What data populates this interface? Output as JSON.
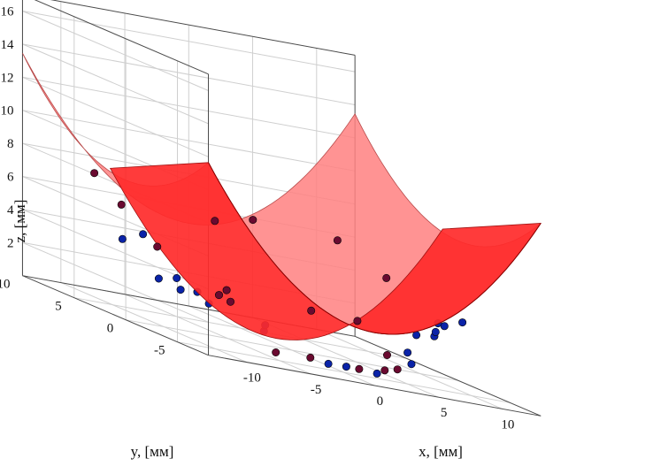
{
  "chart_data": {
    "type": "scatter",
    "subtype": "3d-surface-with-points",
    "title": "",
    "xlabel": "x, [мм]",
    "ylabel": "y, [мм]",
    "zlabel": "z, [мм]",
    "x_ticks": [
      "-10",
      "-5",
      "0",
      "5",
      "10"
    ],
    "y_ticks": [
      "-5",
      "0",
      "5",
      "10"
    ],
    "z_ticks": [
      "2",
      "4",
      "6",
      "8",
      "10",
      "12",
      "14",
      "16"
    ],
    "xlim": [
      -13,
      13
    ],
    "ylim": [
      -8,
      10
    ],
    "zlim": [
      0,
      17
    ],
    "grid": true,
    "surface": {
      "equation": "z = (x^2 + y^2) / 20",
      "x_range": [
        -13,
        13
      ],
      "y_range": [
        -8,
        10
      ],
      "color": "#ff2a2a",
      "back_color": "#ff8080"
    },
    "colors": {
      "point_below": "#0a23a8",
      "point_above": "#6a0a30"
    },
    "points": [
      {
        "x": -7.2,
        "y": 7.5,
        "z": 3.7,
        "side": "below"
      },
      {
        "x": -6.0,
        "y": 7.0,
        "z": 4.3,
        "side": "below"
      },
      {
        "x": -8.0,
        "y": 3.0,
        "z": 2.4,
        "side": "below"
      },
      {
        "x": -7.0,
        "y": 2.5,
        "z": 2.7,
        "side": "below"
      },
      {
        "x": -7.5,
        "y": 1.5,
        "z": 2.2,
        "side": "below"
      },
      {
        "x": -7.0,
        "y": 0.5,
        "z": 2.4,
        "side": "below"
      },
      {
        "x": -6.5,
        "y": 0.0,
        "z": 1.9,
        "side": "below"
      },
      {
        "x": -8.5,
        "y": 6.0,
        "z": 6.0,
        "side": "above"
      },
      {
        "x": -9.0,
        "y": 8.0,
        "z": 7.3,
        "side": "above"
      },
      {
        "x": -6.5,
        "y": 5.0,
        "z": 4.0,
        "side": "above"
      },
      {
        "x": -4.5,
        "y": 1.5,
        "z": 2.3,
        "side": "above"
      },
      {
        "x": -4.0,
        "y": 1.0,
        "z": 2.1,
        "side": "above"
      },
      {
        "x": -3.0,
        "y": -1.0,
        "z": 1.0,
        "side": "below"
      },
      {
        "x": -2.5,
        "y": -0.5,
        "z": 1.3,
        "side": "below"
      },
      {
        "x": -4.5,
        "y": -4.0,
        "z": 0.3,
        "side": "above"
      },
      {
        "x": -3.0,
        "y": -5.5,
        "z": 0.6,
        "side": "above"
      },
      {
        "x": -2.0,
        "y": -6.0,
        "z": 0.5,
        "side": "below"
      },
      {
        "x": -1.0,
        "y": -6.5,
        "z": 0.6,
        "side": "below"
      },
      {
        "x": 0.0,
        "y": -6.5,
        "z": 0.6,
        "side": "above"
      },
      {
        "x": 1.0,
        "y": -7.0,
        "z": 0.6,
        "side": "below"
      },
      {
        "x": 2.0,
        "y": -6.5,
        "z": 0.8,
        "side": "above"
      },
      {
        "x": 3.0,
        "y": -6.5,
        "z": 1.0,
        "side": "above"
      },
      {
        "x": 3.0,
        "y": -5.5,
        "z": 1.6,
        "side": "above"
      },
      {
        "x": 4.5,
        "y": -6.0,
        "z": 1.4,
        "side": "below"
      },
      {
        "x": 5.0,
        "y": -5.0,
        "z": 1.9,
        "side": "below"
      },
      {
        "x": 6.5,
        "y": -4.0,
        "z": 2.9,
        "side": "below"
      },
      {
        "x": 7.5,
        "y": -4.5,
        "z": 3.1,
        "side": "below"
      },
      {
        "x": 8.0,
        "y": -4.0,
        "z": 3.3,
        "side": "below"
      },
      {
        "x": 9.0,
        "y": -3.0,
        "z": 3.7,
        "side": "below"
      },
      {
        "x": 9.5,
        "y": -3.0,
        "z": 3.6,
        "side": "below"
      },
      {
        "x": 10.5,
        "y": -3.5,
        "z": 4.1,
        "side": "below"
      },
      {
        "x": 3.5,
        "y": -2.0,
        "z": 2.8,
        "side": "above"
      },
      {
        "x": 1.5,
        "y": 0.0,
        "z": 2.6,
        "side": "above"
      },
      {
        "x": -3.5,
        "y": 2.0,
        "z": 2.6,
        "side": "above"
      },
      {
        "x": -2.0,
        "y": 5.0,
        "z": 6.2,
        "side": "above"
      },
      {
        "x": 3.0,
        "y": 7.5,
        "z": 6.3,
        "side": "above"
      },
      {
        "x": 8.0,
        "y": 5.5,
        "z": 6.3,
        "side": "above"
      },
      {
        "x": 9.0,
        "y": 2.0,
        "z": 5.1,
        "side": "above"
      }
    ]
  }
}
